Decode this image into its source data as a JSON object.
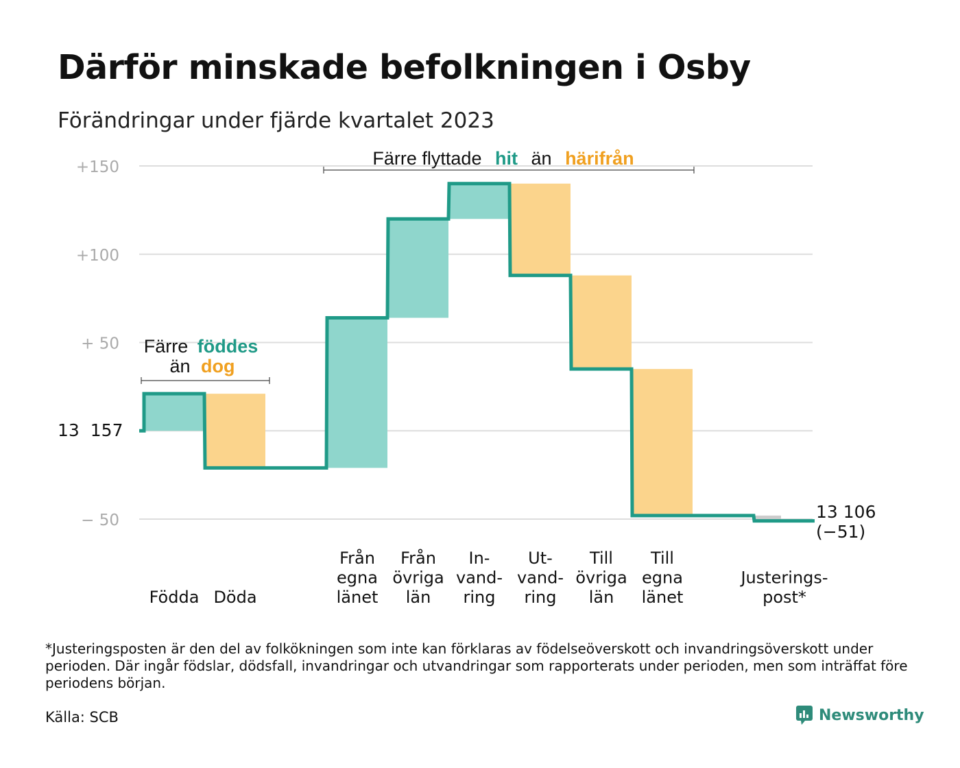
{
  "title": "Därför minskade befolkningen i Osby",
  "subtitle": "Förändringar under fjärde kvartalet 2023",
  "footnote": "*Justeringsposten är den del av folkökningen som inte kan förklaras av födelseöverskott och invandringsöverskott under perioden. Där ingår födslar, dödsfall, invandringar och utvandringar som rapporterats under perioden, men som inträffat före periodens början.",
  "source": "Källa: SCB",
  "brand": "Newsworthy",
  "annotations": {
    "births": {
      "line1_prefix": "Färre",
      "line1_emph": "föddes",
      "line2_prefix": "än",
      "line2_emph": "dog"
    },
    "migration": {
      "prefix": "Färre flyttade",
      "emph1": "hit",
      "mid": "än",
      "emph2": "härifrån"
    }
  },
  "colors": {
    "teal_line": "#1f9a87",
    "teal_fill": "#8fd6cc",
    "orange_fill": "#fbd48c",
    "orange_text": "#f0a020",
    "grey_fill": "#cccccc",
    "grid": "#dddddd",
    "tick_text": "#aaaaaa"
  },
  "chart_data": {
    "type": "waterfall",
    "start_label": "13 157",
    "start_value": 13157,
    "end_label": "13 106",
    "end_change_label": "(−51)",
    "end_value": 13106,
    "ylim": [
      -52,
      152
    ],
    "y_ticks": [
      {
        "value": 150,
        "label": "+150"
      },
      {
        "value": 100,
        "label": "+100"
      },
      {
        "value": 50,
        "label": "+  50"
      },
      {
        "value": 0,
        "label": ""
      },
      {
        "value": -50,
        "label": "−  50"
      }
    ],
    "categories": [
      {
        "label": [
          "",
          "",
          "Födda"
        ],
        "value": 21,
        "kind": "in"
      },
      {
        "label": [
          "",
          "",
          "Döda"
        ],
        "value": -42,
        "kind": "out"
      },
      {
        "label": [
          "",
          "",
          ""
        ],
        "value": 0,
        "kind": "none"
      },
      {
        "label": [
          "Från",
          "egna",
          "länet"
        ],
        "value": 85,
        "kind": "in"
      },
      {
        "label": [
          "Från",
          "övriga",
          "län"
        ],
        "value": 56,
        "kind": "in"
      },
      {
        "label": [
          "In-",
          "vand-",
          "ring"
        ],
        "value": 20,
        "kind": "in"
      },
      {
        "label": [
          "Ut-",
          "vand-",
          "ring"
        ],
        "value": -52,
        "kind": "out"
      },
      {
        "label": [
          "Till",
          "övriga",
          "län"
        ],
        "value": -53,
        "kind": "out"
      },
      {
        "label": [
          "Till",
          "egna",
          "länet"
        ],
        "value": -83,
        "kind": "out"
      },
      {
        "label": [
          "",
          "",
          ""
        ],
        "value": 0,
        "kind": "none"
      },
      {
        "label": [
          "",
          "Justerings-",
          "post*"
        ],
        "value": -3,
        "kind": "adjust"
      }
    ]
  }
}
